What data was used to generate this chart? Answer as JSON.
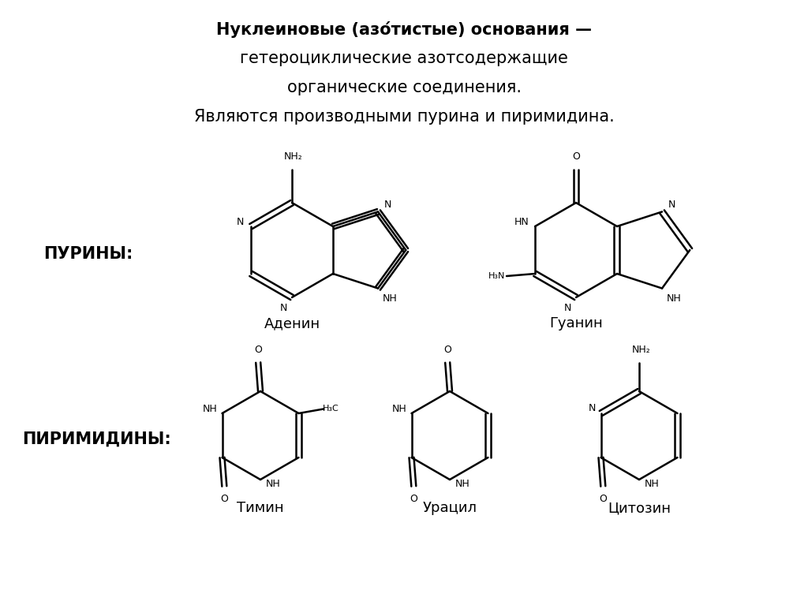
{
  "title_line1": "Нуклеиновые (азо́тистые) основания —",
  "title_line2": "гетероциклические азотсодержащие",
  "title_line3": "органические соединения.",
  "title_line4": "Являются производными пурина и пиримидина.",
  "purines_label": "ПУРИНЫ:",
  "pyrimidines_label": "ПИРИМИДИНЫ:",
  "adenine_label": "Аденин",
  "guanine_label": "Гуанин",
  "thymine_label": "Тимин",
  "uracil_label": "Урацил",
  "cytosine_label": "Цитозин",
  "bg_color": "#ffffff",
  "line_color": "#000000",
  "text_color": "#000000"
}
